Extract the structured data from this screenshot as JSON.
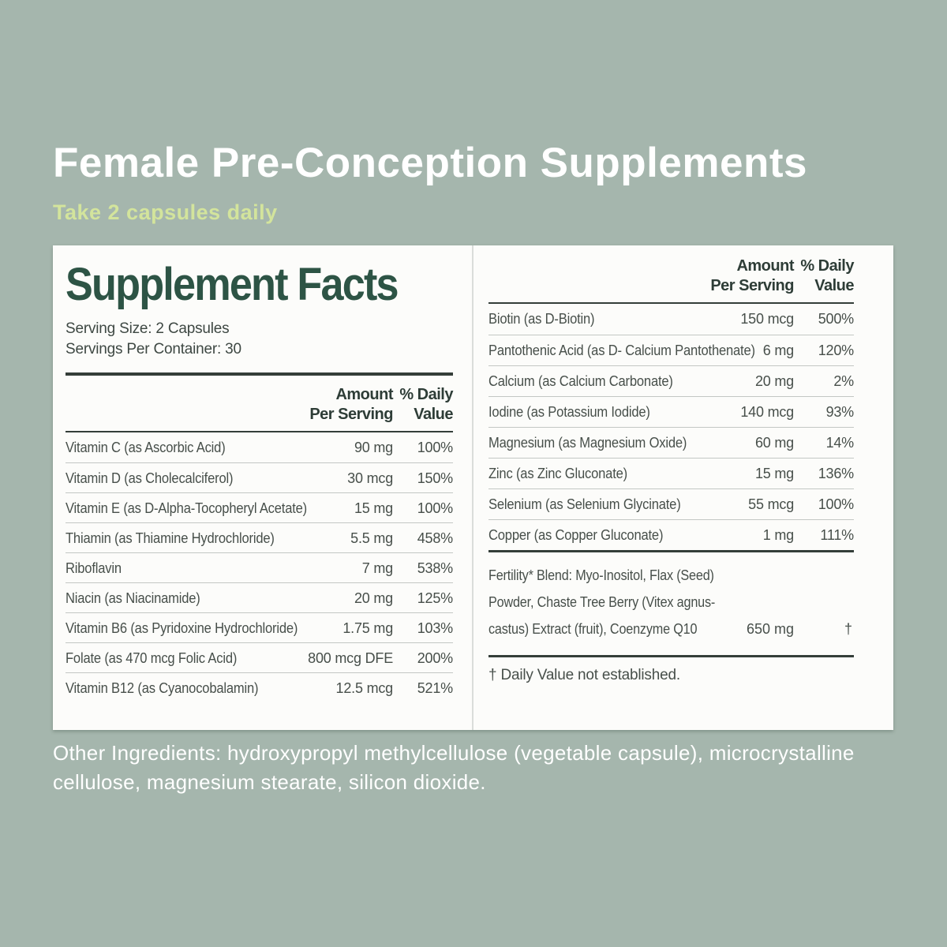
{
  "page": {
    "title": "Female Pre-Conception Supplements",
    "subtitle": "Take 2 capsules daily",
    "other_ingredients": "Other Ingredients: hydroxypropyl methylcellulose (vegetable capsule), microcrystalline cellulose, magnesium stearate, silicon dioxide."
  },
  "colors": {
    "background": "#a5b6ad",
    "title_text": "#ffffff",
    "subtitle_text": "#d3e49c",
    "panel_background": "#fcfcfa",
    "heading_green": "#2d5445",
    "table_text": "#474f4a",
    "rule_dark": "#343e39",
    "separator_light": "#c3c7c4"
  },
  "panel": {
    "title": "Supplement Facts",
    "serving_size": "Serving Size: 2 Capsules",
    "servings_per_container": "Servings Per Container: 30",
    "col_header": {
      "amount_line1": "Amount",
      "amount_line2": "Per Serving",
      "dv_line1": "% Daily",
      "dv_line2": "Value"
    },
    "left_rows": [
      {
        "name": "Vitamin C (as Ascorbic Acid)",
        "amount": "90 mg",
        "dv": "100%"
      },
      {
        "name": "Vitamin D (as Cholecalciferol)",
        "amount": "30 mcg",
        "dv": "150%"
      },
      {
        "name": "Vitamin E (as D-Alpha-Tocopheryl Acetate)",
        "amount": "15 mg",
        "dv": "100%"
      },
      {
        "name": "Thiamin (as Thiamine Hydrochloride)",
        "amount": "5.5 mg",
        "dv": "458%"
      },
      {
        "name": "Riboflavin",
        "amount": "7 mg",
        "dv": "538%"
      },
      {
        "name": "Niacin (as Niacinamide)",
        "amount": "20 mg",
        "dv": "125%"
      },
      {
        "name": "Vitamin B6 (as Pyridoxine Hydrochloride)",
        "amount": "1.75 mg",
        "dv": "103%"
      },
      {
        "name": "Folate (as 470 mcg Folic Acid)",
        "amount": "800 mcg DFE",
        "dv": "200%"
      },
      {
        "name": "Vitamin B12 (as Cyanocobalamin)",
        "amount": "12.5 mcg",
        "dv": "521%"
      }
    ],
    "right_rows": [
      {
        "name": "Biotin (as D-Biotin)",
        "amount": "150 mcg",
        "dv": "500%"
      },
      {
        "name": "Pantothenic Acid (as D- Calcium Pantothenate)",
        "amount": "6 mg",
        "dv": "120%"
      },
      {
        "name": "Calcium (as Calcium Carbonate)",
        "amount": "20 mg",
        "dv": "2%"
      },
      {
        "name": "Iodine (as Potassium Iodide)",
        "amount": "140 mcg",
        "dv": "93%"
      },
      {
        "name": "Magnesium (as Magnesium Oxide)",
        "amount": "60 mg",
        "dv": "14%"
      },
      {
        "name": "Zinc (as Zinc Gluconate)",
        "amount": "15 mg",
        "dv": "136%"
      },
      {
        "name": "Selenium (as Selenium Glycinate)",
        "amount": "55 mcg",
        "dv": "100%"
      },
      {
        "name": "Copper (as Copper Gluconate)",
        "amount": "1 mg",
        "dv": "111%"
      }
    ],
    "blend": {
      "name": "Fertility* Blend: Myo-Inositol, Flax (Seed) Powder, Chaste Tree Berry (Vitex agnus-castus) Extract (fruit), Coenzyme Q10",
      "amount": "650 mg",
      "dv": "†"
    },
    "footnote": "† Daily Value not established."
  }
}
